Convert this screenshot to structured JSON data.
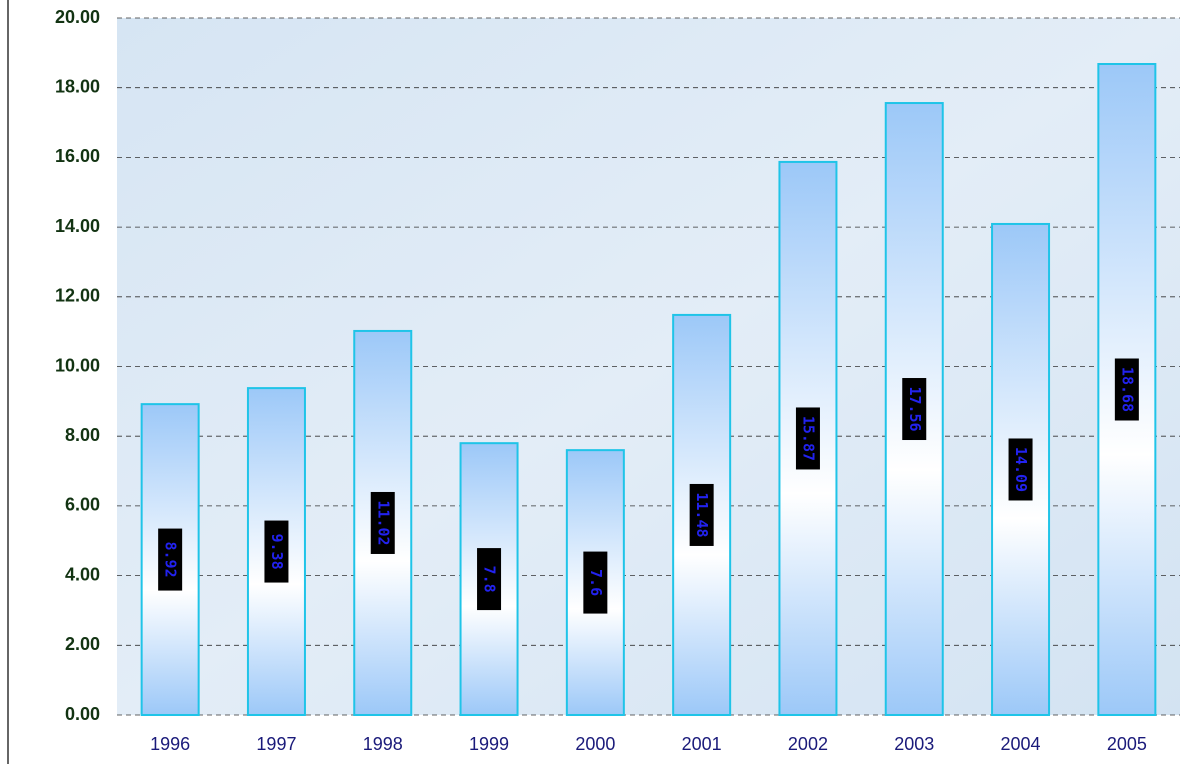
{
  "chart_data": {
    "type": "bar",
    "categories": [
      "1996",
      "1997",
      "1998",
      "1999",
      "2000",
      "2001",
      "2002",
      "2003",
      "2004",
      "2005"
    ],
    "values": [
      8.92,
      9.38,
      11.02,
      7.8,
      7.6,
      11.48,
      15.87,
      17.56,
      14.09,
      18.68
    ],
    "color": "#9cc8f8",
    "ylim": [
      0,
      20
    ],
    "yticks": [
      {
        "value": 0,
        "label": "0.00"
      },
      {
        "value": 2,
        "label": "2.00"
      },
      {
        "value": 4,
        "label": "4.00"
      },
      {
        "value": 6,
        "label": "6.00"
      },
      {
        "value": 8,
        "label": "8.00"
      },
      {
        "value": 10,
        "label": "10.00"
      },
      {
        "value": 12,
        "label": "12.00"
      },
      {
        "value": 14,
        "label": "14.00"
      },
      {
        "value": 16,
        "label": "16.00"
      },
      {
        "value": 18,
        "label": "18.00"
      },
      {
        "value": 20,
        "label": "20.00"
      }
    ],
    "grid": true
  }
}
